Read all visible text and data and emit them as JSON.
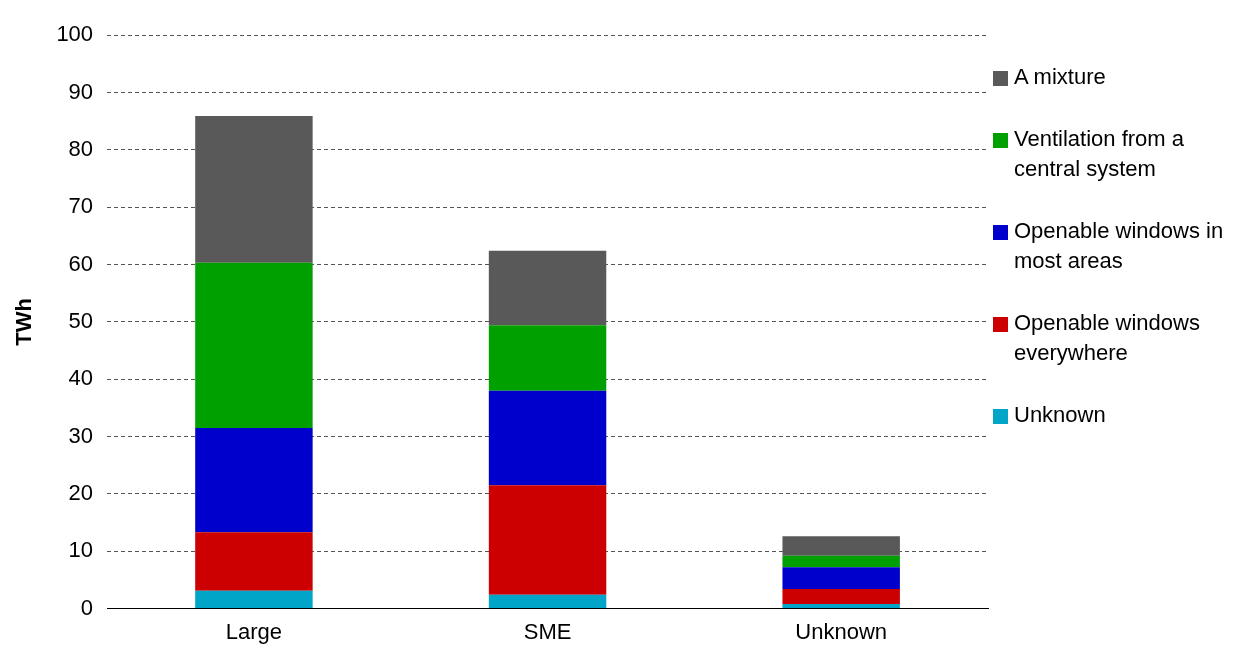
{
  "chart_data": {
    "type": "bar",
    "stacked": true,
    "ylabel": "TWh",
    "categories": [
      "Large",
      "SME",
      "Unknown"
    ],
    "series": [
      {
        "name": "Unknown",
        "color": "#00a5c8",
        "values": [
          3.1,
          2.4,
          0.8
        ]
      },
      {
        "name": "Openable windows everywhere",
        "color": "#cc0000",
        "values": [
          10.2,
          19.1,
          2.6
        ]
      },
      {
        "name": "Openable windows in most areas",
        "color": "#0000cc",
        "values": [
          18.2,
          16.5,
          3.8
        ]
      },
      {
        "name": "Ventilation from a central system",
        "color": "#00a000",
        "values": [
          28.8,
          11.4,
          2.0
        ]
      },
      {
        "name": "A mixture",
        "color": "#595959",
        "values": [
          25.6,
          13.0,
          3.4
        ]
      }
    ],
    "ylim": [
      0,
      100
    ],
    "yticks": [
      0,
      10,
      20,
      30,
      40,
      50,
      60,
      70,
      80,
      90,
      100
    ],
    "grid": "y",
    "legend": "right"
  }
}
